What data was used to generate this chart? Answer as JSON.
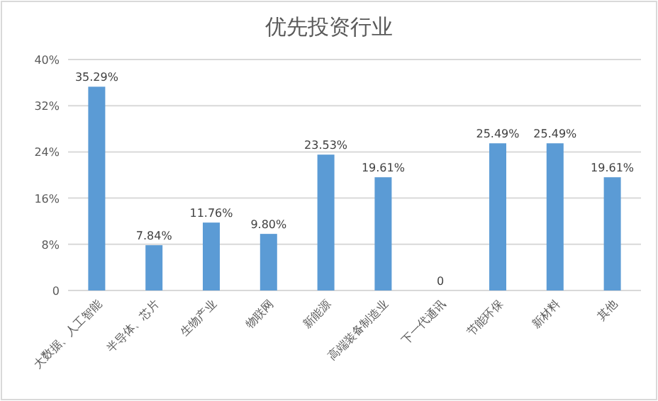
{
  "chart_data": {
    "type": "bar",
    "title": "优先投资行业",
    "categories": [
      "大数据、人工智能",
      "半导体、芯片",
      "生物产业",
      "物联网",
      "新能源",
      "高端装备制造业",
      "下一代通讯",
      "节能环保",
      "新材料",
      "其他"
    ],
    "values": [
      35.29,
      7.84,
      11.76,
      9.8,
      23.53,
      19.61,
      0,
      25.49,
      25.49,
      19.61
    ],
    "value_labels": [
      "35.29%",
      "7.84%",
      "11.76%",
      "9.80%",
      "23.53%",
      "19.61%",
      "0",
      "25.49%",
      "25.49%",
      "19.61%"
    ],
    "color": "#5b9bd5",
    "ylim": [
      0,
      40
    ],
    "yticks": [
      0,
      {
        "value": 8,
        "label": "8%"
      },
      {
        "value": 16,
        "label": "16%"
      },
      {
        "value": 24,
        "label": "24%"
      },
      {
        "value": 32,
        "label": "32%"
      },
      {
        "value": 40,
        "label": "40%"
      }
    ],
    "grid": "y"
  }
}
